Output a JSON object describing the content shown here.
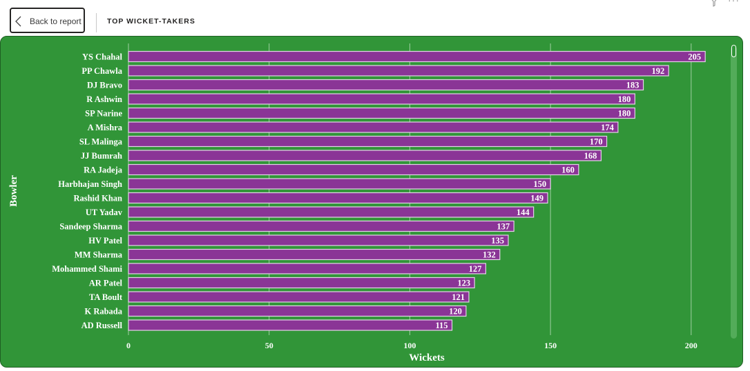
{
  "header": {
    "back_label": "Back to report",
    "title": "TOP WICKET-TAKERS"
  },
  "icons": {
    "back": "chevron-left-icon",
    "filter": "filter-icon",
    "more": "more-options-icon"
  },
  "colors": {
    "panel_background": "#319538",
    "bar_fill": "#8a3596",
    "bar_stroke": "#e6d2ea",
    "text": "#ffffff"
  },
  "chart_data": {
    "type": "bar",
    "orientation": "horizontal",
    "xlabel": "Wickets",
    "ylabel": "Bowler",
    "xlim": [
      0,
      205
    ],
    "x_ticks": [
      0,
      50,
      100,
      150,
      200
    ],
    "grid": true,
    "data_labels": true,
    "categories": [
      "YS Chahal",
      "PP Chawla",
      "DJ Bravo",
      "R Ashwin",
      "SP Narine",
      "A Mishra",
      "SL Malinga",
      "JJ Bumrah",
      "RA Jadeja",
      "Harbhajan Singh",
      "Rashid Khan",
      "UT Yadav",
      "Sandeep Sharma",
      "HV Patel",
      "MM Sharma",
      "Mohammed Shami",
      "AR Patel",
      "TA Boult",
      "K Rabada",
      "AD Russell"
    ],
    "values": [
      205,
      192,
      183,
      180,
      180,
      174,
      170,
      168,
      160,
      150,
      149,
      144,
      137,
      135,
      132,
      127,
      123,
      121,
      120,
      115
    ]
  }
}
